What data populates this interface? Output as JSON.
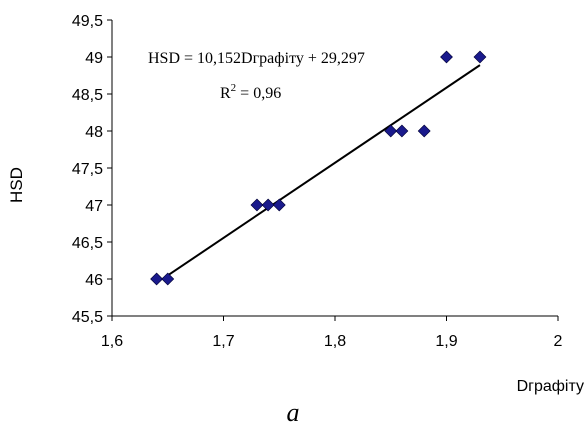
{
  "chart_data": {
    "type": "scatter",
    "xlabel": "Dграфіту",
    "ylabel": "HSD",
    "xlim": [
      1.6,
      2.0
    ],
    "ylim": [
      45.5,
      49.5
    ],
    "x_ticks": [
      "1,6",
      "1,7",
      "1,8",
      "1,9",
      "2"
    ],
    "y_ticks": [
      "45,5",
      "46",
      "46,5",
      "47",
      "47,5",
      "48",
      "48,5",
      "49",
      "49,5"
    ],
    "grid": false,
    "legend": "none",
    "series": [
      {
        "x": [
          1.64,
          1.65,
          1.73,
          1.74,
          1.75,
          1.85,
          1.86,
          1.88,
          1.9,
          1.93
        ],
        "y": [
          46,
          46,
          47,
          47,
          47,
          48,
          48,
          48,
          49,
          49
        ],
        "marker": "diamond",
        "color": "#1a1a8c"
      }
    ],
    "trendline": {
      "slope": 10.152,
      "intercept": 29.297,
      "x_range": [
        1.645,
        1.93
      ],
      "color": "#000000"
    },
    "annotations": {
      "equation": "HSD = 10,152Dграфіту + 29,297",
      "r2_label": "R",
      "r2_sup": "2",
      "r2_value": " = 0,96"
    },
    "caption": "a"
  }
}
